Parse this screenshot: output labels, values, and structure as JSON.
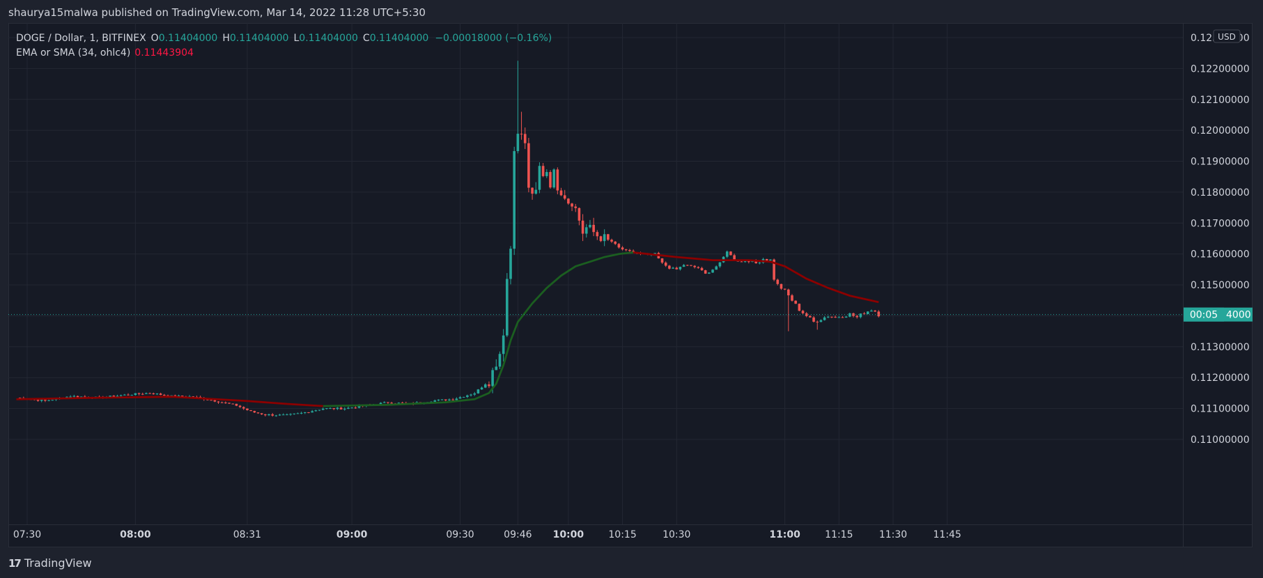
{
  "publish_bar": {
    "text": "shaurya15malwa published on TradingView.com, Mar 14, 2022 11:28 UTC+5:30"
  },
  "legend": {
    "symbol": "DOGE / Dollar, 1, BITFINEX",
    "o_key": "O",
    "o_val": "0.11404000",
    "h_key": "H",
    "h_val": "0.11404000",
    "l_key": "L",
    "l_val": "0.11404000",
    "c_key": "C",
    "c_val": "0.11404000",
    "change": "−0.00018000 (−0.16%)",
    "ema_label": "EMA or SMA (34, ohlc4)",
    "ema_value": "0.11443904"
  },
  "currency_button": "USD",
  "countdown_badge": "00:05",
  "logo_text": "TradingView",
  "colors": {
    "up": "#26a69a",
    "down": "#ef5350",
    "ema_up": "#1b5e20",
    "ema_down": "#8b0000",
    "badge": "#26a69a"
  },
  "chart_data": {
    "type": "candlestick",
    "y_ticks": [
      "0.12300000",
      "0.12200000",
      "0.12100000",
      "0.12000000",
      "0.11900000",
      "0.11800000",
      "0.11700000",
      "0.11600000",
      "0.11500000",
      "0.11400000",
      "0.11300000",
      "0.11200000",
      "0.11100000",
      "0.11000000"
    ],
    "ylim": [
      0.1097,
      0.1232
    ],
    "x_ticks": [
      {
        "label": "07:30",
        "t": 0,
        "bold": false
      },
      {
        "label": "08:00",
        "t": 30,
        "bold": true
      },
      {
        "label": "08:31",
        "t": 61,
        "bold": false
      },
      {
        "label": "09:00",
        "t": 90,
        "bold": true
      },
      {
        "label": "09:30",
        "t": 120,
        "bold": false
      },
      {
        "label": "09:46",
        "t": 136,
        "bold": false
      },
      {
        "label": "10:00",
        "t": 150,
        "bold": true
      },
      {
        "label": "10:15",
        "t": 165,
        "bold": false
      },
      {
        "label": "10:30",
        "t": 180,
        "bold": false
      },
      {
        "label": "11:00",
        "t": 210,
        "bold": true
      },
      {
        "label": "11:15",
        "t": 225,
        "bold": false
      },
      {
        "label": "11:30",
        "t": 240,
        "bold": false
      },
      {
        "label": "11:45",
        "t": 255,
        "bold": false
      }
    ],
    "last_price": 0.11404,
    "anchors": [
      [
        -3,
        0.11135
      ],
      [
        5,
        0.11125
      ],
      [
        12,
        0.1114
      ],
      [
        20,
        0.11135
      ],
      [
        28,
        0.11145
      ],
      [
        34,
        0.1115
      ],
      [
        40,
        0.1114
      ],
      [
        46,
        0.11138
      ],
      [
        52,
        0.11125
      ],
      [
        58,
        0.1111
      ],
      [
        62,
        0.1109
      ],
      [
        66,
        0.1108
      ],
      [
        72,
        0.11078
      ],
      [
        76,
        0.11085
      ],
      [
        82,
        0.111
      ],
      [
        88,
        0.111
      ],
      [
        94,
        0.1111
      ],
      [
        100,
        0.1112
      ],
      [
        106,
        0.11115
      ],
      [
        112,
        0.11125
      ],
      [
        118,
        0.1113
      ],
      [
        124,
        0.1115
      ],
      [
        126,
        0.1117
      ],
      [
        128,
        0.1119
      ],
      [
        130,
        0.1125
      ],
      [
        131,
        0.1128
      ],
      [
        132,
        0.1135
      ],
      [
        133,
        0.1152
      ],
      [
        134,
        0.1162
      ],
      [
        135,
        0.1195
      ],
      [
        136,
        0.1198
      ],
      [
        137,
        0.1199
      ],
      [
        138,
        0.1195
      ],
      [
        139,
        0.1182
      ],
      [
        140,
        0.1178
      ],
      [
        141,
        0.118
      ],
      [
        142,
        0.1188
      ],
      [
        143,
        0.1186
      ],
      [
        144,
        0.1187
      ],
      [
        145,
        0.1183
      ],
      [
        146,
        0.1186
      ],
      [
        147,
        0.1182
      ],
      [
        148,
        0.11805
      ],
      [
        149,
        0.1179
      ],
      [
        150,
        0.1177
      ],
      [
        151,
        0.1177
      ],
      [
        152,
        0.11745
      ],
      [
        153,
        0.1171
      ],
      [
        154,
        0.1167
      ],
      [
        155,
        0.11685
      ],
      [
        156,
        0.1168
      ],
      [
        158,
        0.1166
      ],
      [
        160,
        0.1165
      ],
      [
        162,
        0.1164
      ],
      [
        164,
        0.1162
      ],
      [
        166,
        0.1161
      ],
      [
        168,
        0.11605
      ],
      [
        170,
        0.116
      ],
      [
        172,
        0.11595
      ],
      [
        174,
        0.116
      ],
      [
        176,
        0.1157
      ],
      [
        178,
        0.11555
      ],
      [
        180,
        0.1155
      ],
      [
        182,
        0.11565
      ],
      [
        184,
        0.1156
      ],
      [
        186,
        0.11555
      ],
      [
        188,
        0.11535
      ],
      [
        190,
        0.1155
      ],
      [
        192,
        0.1157
      ],
      [
        194,
        0.1161
      ],
      [
        196,
        0.1158
      ],
      [
        198,
        0.11575
      ],
      [
        200,
        0.1158
      ],
      [
        202,
        0.1157
      ],
      [
        204,
        0.11585
      ],
      [
        206,
        0.1158
      ],
      [
        207,
        0.1152
      ],
      [
        208,
        0.115
      ],
      [
        210,
        0.1148
      ],
      [
        212,
        0.1145
      ],
      [
        214,
        0.1142
      ],
      [
        216,
        0.114
      ],
      [
        218,
        0.1138
      ],
      [
        220,
        0.1139
      ],
      [
        222,
        0.114
      ],
      [
        224,
        0.11395
      ],
      [
        226,
        0.114
      ],
      [
        228,
        0.11405
      ],
      [
        230,
        0.11395
      ],
      [
        232,
        0.1141
      ],
      [
        234,
        0.1142
      ],
      [
        235,
        0.11415
      ],
      [
        236,
        0.11404
      ]
    ],
    "spikes": [
      {
        "t": 136,
        "high": 0.12225
      },
      {
        "t": 137,
        "high": 0.1206
      },
      {
        "t": 211,
        "low": 0.1135
      },
      {
        "t": 219,
        "low": 0.11355
      }
    ],
    "ema": [
      [
        -3,
        0.1113
      ],
      [
        20,
        0.11135
      ],
      [
        40,
        0.11138
      ],
      [
        60,
        0.11125
      ],
      [
        72,
        0.11115
      ],
      [
        82,
        0.11108
      ],
      [
        100,
        0.11112
      ],
      [
        116,
        0.1112
      ],
      [
        124,
        0.1113
      ],
      [
        128,
        0.1115
      ],
      [
        130,
        0.1118
      ],
      [
        132,
        0.1124
      ],
      [
        134,
        0.1132
      ],
      [
        136,
        0.1138
      ],
      [
        140,
        0.1144
      ],
      [
        144,
        0.1149
      ],
      [
        148,
        0.1153
      ],
      [
        152,
        0.1156
      ],
      [
        156,
        0.11575
      ],
      [
        160,
        0.1159
      ],
      [
        164,
        0.116
      ],
      [
        168,
        0.11605
      ],
      [
        172,
        0.116
      ],
      [
        180,
        0.1159
      ],
      [
        190,
        0.1158
      ],
      [
        200,
        0.1158
      ],
      [
        206,
        0.11575
      ],
      [
        210,
        0.1156
      ],
      [
        216,
        0.1152
      ],
      [
        222,
        0.1149
      ],
      [
        228,
        0.11465
      ],
      [
        236,
        0.11444
      ]
    ]
  }
}
